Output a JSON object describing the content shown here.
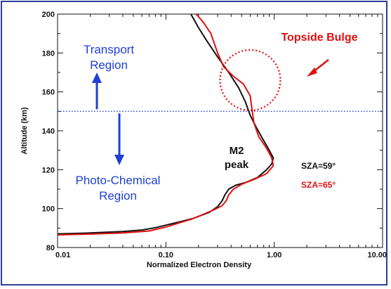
{
  "chart_data": {
    "type": "line",
    "title": "",
    "xlabel": "Normalized Electron Density",
    "ylabel": "Altitude (km)",
    "xscale": "log",
    "xlim": [
      0.01,
      10.0
    ],
    "ylim": [
      80,
      200
    ],
    "grid": false,
    "xticks": [
      "0.01",
      "0.10",
      "1.00",
      "10.00"
    ],
    "yticks": [
      "80",
      "100",
      "120",
      "140",
      "160",
      "180",
      "200"
    ],
    "series": [
      {
        "name": "SZA=59°",
        "color": "#111111",
        "points": [
          [
            0.01,
            87
          ],
          [
            0.02,
            87.5
          ],
          [
            0.04,
            88.2
          ],
          [
            0.06,
            89.0
          ],
          [
            0.08,
            90.2
          ],
          [
            0.1,
            91.5
          ],
          [
            0.13,
            93.0
          ],
          [
            0.18,
            95.0
          ],
          [
            0.25,
            98.0
          ],
          [
            0.3,
            101.0
          ],
          [
            0.33,
            104.0
          ],
          [
            0.35,
            107.0
          ],
          [
            0.38,
            110.0
          ],
          [
            0.44,
            112.0
          ],
          [
            0.55,
            113.5
          ],
          [
            0.7,
            116.0
          ],
          [
            0.85,
            120.0
          ],
          [
            0.95,
            123.0
          ],
          [
            0.98,
            126.0
          ],
          [
            0.9,
            130.0
          ],
          [
            0.78,
            136.0
          ],
          [
            0.68,
            142.0
          ],
          [
            0.6,
            148.0
          ],
          [
            0.54,
            155.0
          ],
          [
            0.47,
            162.0
          ],
          [
            0.38,
            170.0
          ],
          [
            0.3,
            178.0
          ],
          [
            0.24,
            186.0
          ],
          [
            0.2,
            193.0
          ],
          [
            0.17,
            200.0
          ]
        ]
      },
      {
        "name": "SZA=65°",
        "color": "#e01010",
        "points": [
          [
            0.01,
            86.5
          ],
          [
            0.02,
            86.9
          ],
          [
            0.04,
            87.5
          ],
          [
            0.07,
            88.5
          ],
          [
            0.1,
            90.5
          ],
          [
            0.13,
            92.5
          ],
          [
            0.17,
            94.5
          ],
          [
            0.22,
            97.0
          ],
          [
            0.28,
            99.5
          ],
          [
            0.33,
            101.5
          ],
          [
            0.36,
            104.0
          ],
          [
            0.38,
            107.0
          ],
          [
            0.42,
            110.0
          ],
          [
            0.5,
            112.5
          ],
          [
            0.65,
            115.0
          ],
          [
            0.85,
            118.0
          ],
          [
            0.98,
            122.0
          ],
          [
            0.95,
            126.0
          ],
          [
            0.85,
            131.0
          ],
          [
            0.72,
            137.0
          ],
          [
            0.65,
            144.0
          ],
          [
            0.62,
            152.0
          ],
          [
            0.6,
            158.0
          ],
          [
            0.52,
            164.0
          ],
          [
            0.42,
            168.0
          ],
          [
            0.34,
            173.0
          ],
          [
            0.3,
            180.0
          ],
          [
            0.26,
            190.0
          ],
          [
            0.22,
            196.0
          ],
          [
            0.19,
            200.0
          ]
        ]
      }
    ],
    "reference_line": {
      "y": 150,
      "color": "#1f3fd6",
      "style": "dotted"
    },
    "annotations": {
      "transport": [
        "Transport",
        "Region"
      ],
      "photochem": [
        "Photo-Chemical",
        "Region"
      ],
      "topside": "Topside Bulge",
      "m2": [
        "M2",
        "peak"
      ],
      "bulge_circle": {
        "x": 0.6,
        "y": 166
      }
    },
    "legend": {
      "placement": "right",
      "entries": [
        {
          "label": "SZA=59°",
          "color": "#111111"
        },
        {
          "label": "SZA=65°",
          "color": "#e01010"
        }
      ]
    }
  }
}
